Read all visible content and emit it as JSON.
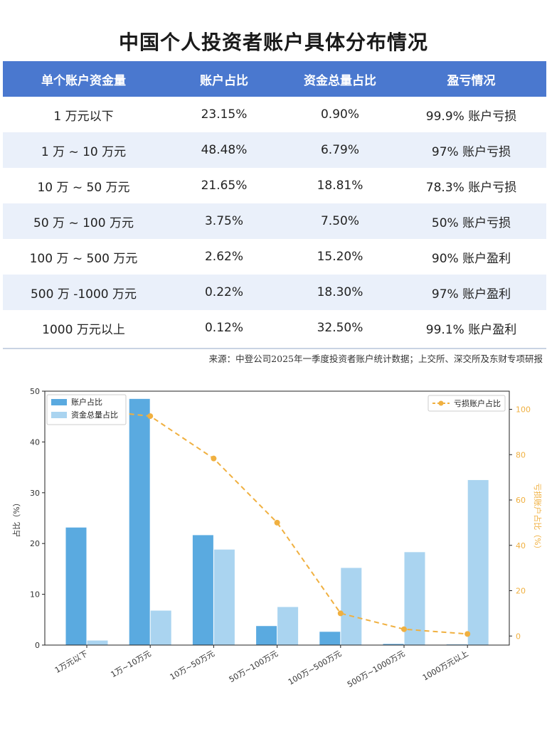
{
  "title": "中国个人投资者账户具体分布情况",
  "table": {
    "headers": [
      "单个账户资金量",
      "账户占比",
      "资金总量占比",
      "盈亏情况"
    ],
    "rows": [
      [
        "1 万元以下",
        "23.15%",
        "0.90%",
        "99.9% 账户亏损"
      ],
      [
        "1 万 ~ 10 万元",
        "48.48%",
        "6.79%",
        "97% 账户亏损"
      ],
      [
        "10 万 ~ 50 万元",
        "21.65%",
        "18.81%",
        "78.3% 账户亏损"
      ],
      [
        "50 万 ~ 100 万元",
        "3.75%",
        "7.50%",
        "50% 账户亏损"
      ],
      [
        "100 万 ~ 500 万元",
        "2.62%",
        "15.20%",
        "90% 账户盈利"
      ],
      [
        "500 万 -1000 万元",
        "0.22%",
        "18.30%",
        "97% 账户盈利"
      ],
      [
        "1000 万元以上",
        "0.12%",
        "32.50%",
        "99.1% 账户盈利"
      ]
    ]
  },
  "source": "来源：中登公司2025年一季度投资者账户统计数据；上交所、深交所及东财专项研报",
  "colors": {
    "header_bg": "#4a78cf",
    "row_alt_bg": "#eaf0fa",
    "bar_primary": "#5aaae0",
    "bar_secondary": "#aad4f0",
    "line": "#f0b040"
  },
  "chart_data": {
    "type": "bar",
    "categories": [
      "1万元以下",
      "1万~10万元",
      "10万~50万元",
      "50万~100万元",
      "100万~500万元",
      "500万~1000万元",
      "1000万元以上"
    ],
    "series": [
      {
        "name": "账户占比",
        "type": "bar",
        "axis": "left",
        "values": [
          23.15,
          48.48,
          21.65,
          3.75,
          2.62,
          0.22,
          0.12
        ]
      },
      {
        "name": "资金总量占比",
        "type": "bar",
        "axis": "left",
        "values": [
          0.9,
          6.79,
          18.81,
          7.5,
          15.2,
          18.3,
          32.5
        ]
      },
      {
        "name": "亏损账户占比",
        "type": "line",
        "axis": "right",
        "dashed": true,
        "values": [
          99.9,
          97,
          78.3,
          50,
          10,
          3,
          0.9
        ]
      }
    ],
    "ylabel": "占比（%）",
    "y2label": "亏损账户占比（%）",
    "ylim": [
      0,
      50
    ],
    "y2lim": [
      -4,
      108
    ],
    "yticks": [
      0,
      10,
      20,
      30,
      40,
      50
    ],
    "y2ticks": [
      0,
      20,
      40,
      60,
      80,
      100
    ],
    "legend_left": "upper-left",
    "legend_right": "upper-right",
    "grid": false
  }
}
